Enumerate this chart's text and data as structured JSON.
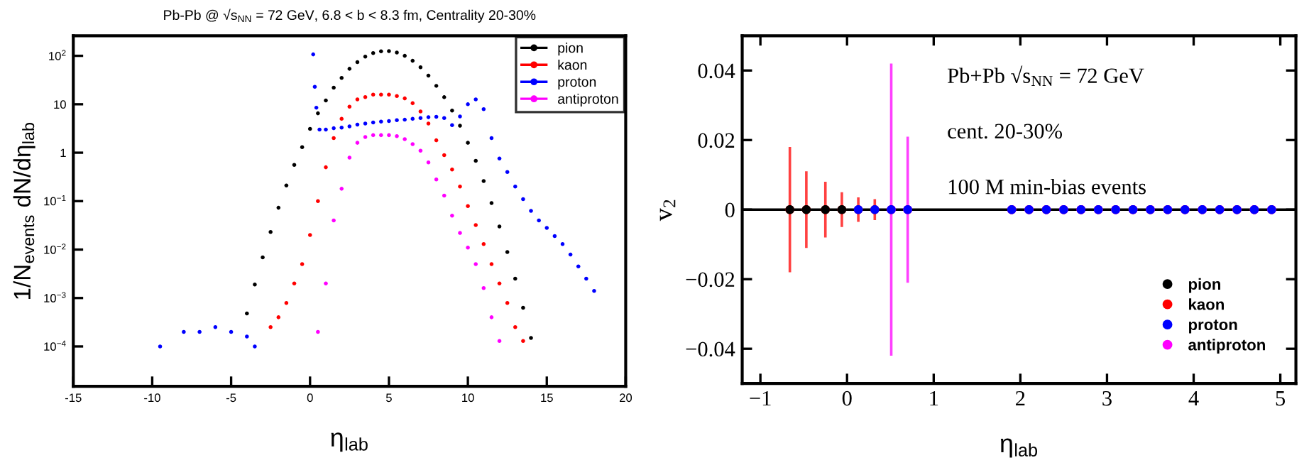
{
  "chart_data": [
    {
      "type": "scatter",
      "title": "Pb-Pb @ √s$_{NN}$ = 72 GeV, 6.8 < b < 8.3 fm, Centrality 20-30%",
      "xlabel": "η$_{lab}$",
      "ylabel": "1/N$_{events}$ dN/dη$_{lab}$",
      "log": "y",
      "marker": "circle",
      "legend": "top right",
      "xlim": [
        -15,
        20
      ],
      "ylim": [
        1.5e-05,
        260
      ],
      "xticks": [
        -15,
        -10,
        -5,
        0,
        5,
        10,
        15,
        20
      ],
      "yticks": [
        {
          "value": 0.0001,
          "label": "10$^{−4}$"
        },
        {
          "value": 0.001,
          "label": "10$^{−3}$"
        },
        {
          "value": 0.01,
          "label": "10$^{−2}$"
        },
        {
          "value": 0.1,
          "label": "10$^{−1}$"
        },
        1,
        10,
        {
          "value": 100,
          "label": "10$^{2}$"
        }
      ],
      "series": [
        {
          "name": "pion",
          "color": "#000000",
          "x": [
            -4,
            -3.5,
            -3,
            -2.5,
            -2,
            -1.5,
            -1,
            -0.5,
            0,
            0.5,
            1,
            1.5,
            2,
            2.5,
            3,
            3.5,
            4,
            4.5,
            5,
            5.5,
            6,
            6.5,
            7,
            7.5,
            8,
            8.5,
            9,
            9.5,
            10,
            10.5,
            11,
            11.5,
            12,
            12.5,
            13,
            13.5,
            14
          ],
          "values": [
            0.00048,
            0.0019,
            0.0069,
            0.023,
            0.073,
            0.21,
            0.56,
            1.3,
            3.1,
            6.5,
            12,
            22,
            35,
            54,
            74,
            96,
            114,
            124,
            125,
            117,
            100,
            79,
            58,
            39,
            24,
            14,
            7.4,
            3.6,
            1.6,
            0.68,
            0.26,
            0.091,
            0.03,
            0.0089,
            0.0025,
            0.00063,
            0.00015
          ]
        },
        {
          "name": "kaon",
          "color": "#ff0000",
          "x": [
            -2.5,
            -2,
            -1.5,
            -1,
            -0.5,
            0,
            0.5,
            1,
            1.5,
            2,
            2.5,
            3,
            3.5,
            4,
            4.5,
            5,
            5.5,
            6,
            6.5,
            7,
            7.5,
            8,
            8.5,
            9,
            9.5,
            10,
            10.5,
            11,
            11.5,
            12,
            12.5,
            13,
            13.5
          ],
          "values": [
            0.00025,
            0.0004,
            0.00079,
            0.002,
            0.005,
            0.02,
            0.1,
            0.5,
            2,
            5,
            8.9,
            12.6,
            14.1,
            15.8,
            15.8,
            15.8,
            14.8,
            13.2,
            10.5,
            7.1,
            4,
            1.8,
            0.89,
            0.45,
            0.2,
            0.079,
            0.032,
            0.013,
            0.005,
            0.002,
            0.00079,
            0.00025,
            0.00013
          ]
        },
        {
          "name": "proton",
          "color": "#0000ff",
          "x": [
            -9.5,
            -8,
            -7,
            -6,
            -5,
            -4,
            -3.5,
            0.2,
            0.3,
            0.4,
            0.6,
            1,
            1.5,
            2,
            2.5,
            3,
            3.5,
            4,
            4.5,
            5,
            5.5,
            6,
            6.5,
            7,
            7.5,
            8,
            8.5,
            9,
            9.5,
            10,
            10.5,
            11,
            11.5,
            12,
            12.5,
            13,
            13.5,
            14,
            14.5,
            15,
            15.5,
            16,
            16.5,
            17,
            17.5,
            18
          ],
          "values": [
            0.0001,
            0.0002,
            0.0002,
            0.00025,
            0.0002,
            0.00016,
            0.0001,
            107,
            23,
            8.5,
            3,
            3,
            3.2,
            3.3,
            3.5,
            3.8,
            4,
            4.2,
            4.4,
            4.5,
            4.7,
            4.8,
            5,
            5.2,
            5.4,
            5.5,
            5.2,
            3.7,
            5.6,
            10,
            12.6,
            7.9,
            2,
            0.76,
            0.4,
            0.2,
            0.11,
            0.063,
            0.04,
            0.028,
            0.019,
            0.013,
            0.0079,
            0.0045,
            0.0025,
            0.0014
          ]
        },
        {
          "name": "antiproton",
          "color": "#ff00ff",
          "x": [
            0.5,
            1,
            1.5,
            2,
            2.5,
            3,
            3.5,
            4,
            4.5,
            5,
            5.5,
            6,
            6.5,
            7,
            7.5,
            8,
            8.5,
            9,
            9.5,
            10,
            10.5,
            11,
            11.5,
            12
          ],
          "values": [
            0.0002,
            0.002,
            0.04,
            0.18,
            0.79,
            1.6,
            2.1,
            2.3,
            2.3,
            2.3,
            2.2,
            1.9,
            1.5,
            1.1,
            0.63,
            0.28,
            0.13,
            0.05,
            0.022,
            0.011,
            0.005,
            0.0016,
            0.0004,
            0.00013
          ]
        }
      ]
    },
    {
      "type": "scatter",
      "xlabel": "η$_{lab}$",
      "ylabel": "v$_{2}$",
      "marker": "circle",
      "legend": "bottom right",
      "xlim": [
        -1.21,
        5.18
      ],
      "ylim": [
        -0.05,
        0.05
      ],
      "xticks": [
        {
          "value": -1,
          "label": "−1"
        },
        0,
        1,
        2,
        3,
        4,
        5
      ],
      "yticks": [
        {
          "value": -0.04,
          "label": "−0.04"
        },
        {
          "value": -0.02,
          "label": "−0.02"
        },
        0,
        0.02,
        0.04
      ],
      "ref_lines": [
        {
          "axis": "y",
          "value": 0,
          "color": "#000000"
        }
      ],
      "annotations": [
        "Pb+Pb √s$_{NN}$ = 72 GeV",
        "cent. 20-30%",
        "100 M min-bias events"
      ],
      "series": [
        {
          "name": "kaon",
          "color": "#ff0000",
          "x": [
            -0.66,
            -0.47,
            -0.25,
            -0.06,
            0.13,
            0.32,
            0.51,
            0.7,
            1.9,
            2.1,
            2.3,
            2.5,
            2.7,
            2.9,
            3.1,
            3.3,
            3.5,
            3.7,
            3.9,
            4.1,
            4.3,
            4.5,
            4.7,
            4.9
          ],
          "values": [
            0,
            0,
            0,
            0,
            0,
            0,
            0,
            0,
            0,
            0,
            0,
            0,
            0,
            0,
            0,
            0,
            0,
            0,
            0,
            0,
            0,
            0,
            0,
            0
          ],
          "errors": [
            0.018,
            0.011,
            0.008,
            0.005,
            0.0035,
            0.003,
            null,
            null,
            null,
            null,
            null,
            null,
            null,
            null,
            null,
            null,
            null,
            null,
            null,
            null,
            null,
            null,
            null,
            null
          ]
        },
        {
          "name": "antiproton",
          "color": "#ff00ff",
          "x": [
            0.51,
            0.7,
            1.9,
            2.1,
            2.3,
            2.5,
            2.7,
            2.9,
            3.1,
            3.3,
            3.5,
            3.7,
            3.9,
            4.1,
            4.3,
            4.5,
            4.7,
            4.9
          ],
          "values": [
            0,
            0,
            0,
            0,
            0,
            0,
            0,
            0,
            0,
            0,
            0,
            0,
            0,
            0,
            0,
            0,
            0,
            0
          ],
          "errors": [
            0.042,
            0.021,
            null,
            null,
            null,
            null,
            null,
            null,
            null,
            null,
            null,
            null,
            null,
            null,
            null,
            null,
            null,
            null
          ]
        },
        {
          "name": "proton",
          "color": "#0000ff",
          "x": [
            0.13,
            0.32,
            0.51,
            0.7,
            1.9,
            2.1,
            2.3,
            2.5,
            2.7,
            2.9,
            3.1,
            3.3,
            3.5,
            3.7,
            3.9,
            4.1,
            4.3,
            4.5,
            4.7,
            4.9
          ],
          "values": [
            0,
            0,
            0,
            0,
            0,
            0,
            0,
            0,
            0,
            0,
            0,
            0,
            0,
            0,
            0,
            0,
            0,
            0,
            0,
            0
          ]
        },
        {
          "name": "pion",
          "color": "#000000",
          "x": [
            -0.66,
            -0.47,
            -0.25,
            -0.06
          ],
          "values": [
            0,
            0,
            0,
            0
          ]
        }
      ]
    }
  ]
}
